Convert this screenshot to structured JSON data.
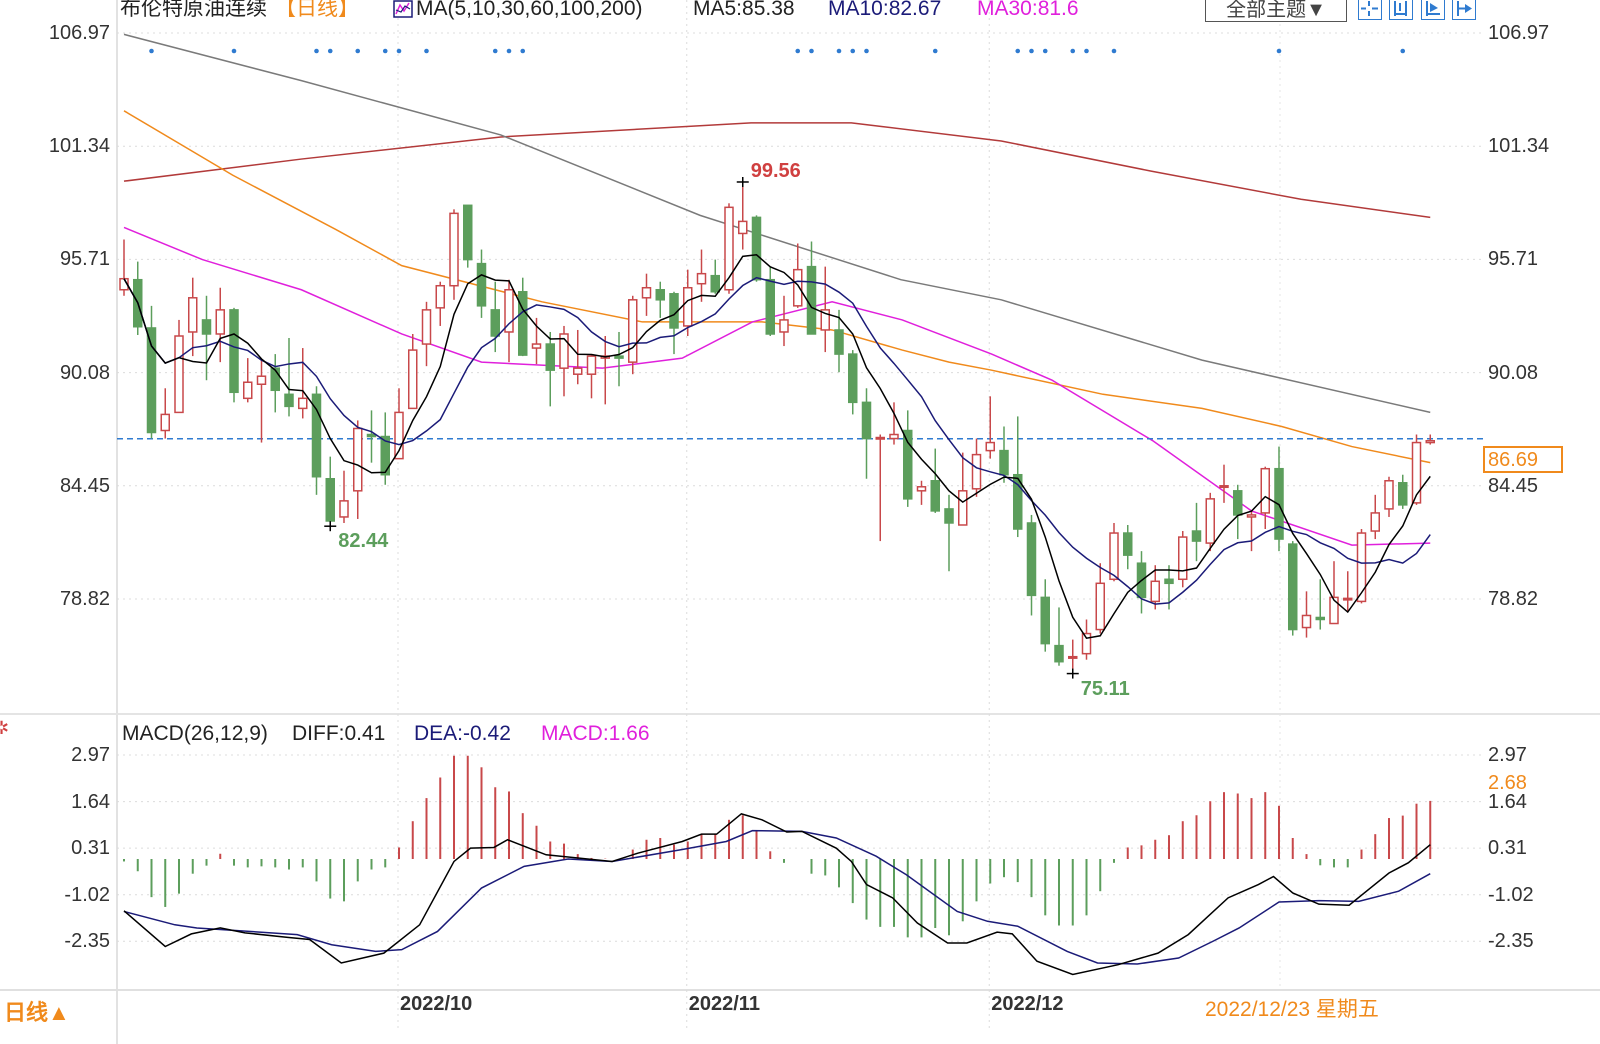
{
  "header": {
    "title": "布伦特原油连续",
    "period": "【日线】",
    "ma_params": "MA(5,10,30,60,100,200)",
    "ma5": "MA5:85.38",
    "ma10": "MA10:82.67",
    "ma30": "MA30:81.6",
    "theme_select": "全部主题▼"
  },
  "toolbar_icons": [
    "crosshair-icon",
    "zoom-range-icon",
    "play-step-icon",
    "jump-end-icon"
  ],
  "macd_header": {
    "params": "MACD(26,12,9)",
    "diff": "DIFF:0.41",
    "dea": "DEA:-0.42",
    "macd": "MACD:1.66"
  },
  "bottom": {
    "period_toggle": "日线▲",
    "cursor_date": "2022/12/23 星期五"
  },
  "colors": {
    "up": "#c8484a",
    "down": "#5c9e5c",
    "ma5": "#000000",
    "ma10": "#1b1b78",
    "ma30": "#e020dc",
    "ma60": "#f08a1c",
    "ma100": "#7a7a7a",
    "ma200": "#b23a3a",
    "current_line": "#2f7bd0",
    "accent": "#f08a1c"
  },
  "chart_data": [
    {
      "type": "candlestick",
      "title": "布伦特原油连续",
      "price_ticks": [
        "106.97",
        "101.34",
        "95.71",
        "90.08",
        "84.45",
        "78.82"
      ],
      "x_ticks": [
        {
          "label": "2022/10",
          "index": 21
        },
        {
          "label": "2022/11",
          "index": 42
        },
        {
          "label": "2022/12",
          "index": 64
        }
      ],
      "current_price": "86.69",
      "ohlc": [
        [
          94.2,
          96.7,
          93.9,
          94.75
        ],
        [
          94.7,
          95.6,
          91.95,
          92.36
        ],
        [
          92.3,
          93.4,
          86.8,
          87.1
        ],
        [
          87.2,
          89.3,
          86.8,
          88.0
        ],
        [
          88.1,
          92.7,
          88.1,
          91.9
        ],
        [
          92.1,
          94.8,
          90.9,
          93.8
        ],
        [
          92.7,
          93.9,
          89.7,
          92.0
        ],
        [
          92.0,
          94.3,
          90.6,
          93.2
        ],
        [
          93.2,
          93.3,
          88.6,
          89.1
        ],
        [
          88.8,
          90.8,
          88.6,
          89.6
        ],
        [
          89.5,
          90.7,
          86.6,
          89.9
        ],
        [
          90.3,
          91.0,
          88.1,
          89.2
        ],
        [
          89.0,
          91.8,
          87.9,
          88.4
        ],
        [
          88.3,
          91.3,
          87.8,
          88.8
        ],
        [
          89.0,
          89.4,
          84.0,
          84.9
        ],
        [
          84.8,
          85.9,
          82.44,
          82.7
        ],
        [
          82.9,
          85.2,
          82.6,
          83.7
        ],
        [
          84.2,
          87.7,
          82.8,
          87.3
        ],
        [
          87.0,
          88.2,
          85.6,
          86.9
        ],
        [
          86.9,
          88.1,
          84.5,
          85.0
        ],
        [
          85.8,
          89.3,
          85.8,
          88.1
        ],
        [
          88.3,
          92.0,
          88.3,
          91.2
        ],
        [
          91.5,
          93.6,
          90.4,
          93.2
        ],
        [
          93.3,
          94.6,
          92.4,
          94.4
        ],
        [
          94.4,
          98.2,
          93.7,
          98.0
        ],
        [
          98.4,
          98.4,
          95.3,
          95.7
        ],
        [
          95.5,
          96.2,
          92.8,
          93.4
        ],
        [
          93.2,
          94.6,
          91.1,
          91.9
        ],
        [
          92.1,
          94.7,
          90.6,
          94.2
        ],
        [
          94.1,
          94.8,
          90.9,
          90.95
        ],
        [
          91.3,
          92.8,
          90.5,
          91.5
        ],
        [
          91.5,
          92.1,
          88.4,
          90.2
        ],
        [
          90.3,
          92.4,
          88.9,
          92.0
        ],
        [
          90.0,
          92.2,
          89.5,
          90.3
        ],
        [
          90.0,
          91.0,
          88.8,
          90.9
        ],
        [
          90.8,
          91.9,
          88.5,
          90.9
        ],
        [
          90.9,
          92.1,
          89.4,
          90.8
        ],
        [
          90.6,
          93.9,
          90.0,
          93.7
        ],
        [
          93.8,
          95.0,
          92.9,
          94.3
        ],
        [
          94.2,
          94.6,
          92.8,
          93.7
        ],
        [
          94.0,
          94.1,
          91.0,
          92.3
        ],
        [
          92.4,
          95.2,
          91.9,
          94.3
        ],
        [
          94.5,
          96.2,
          93.6,
          95.0
        ],
        [
          94.9,
          95.7,
          94.0,
          94.1
        ],
        [
          94.2,
          98.5,
          94.0,
          98.3
        ],
        [
          97.0,
          99.56,
          96.2,
          97.6
        ],
        [
          97.8,
          97.9,
          94.6,
          94.7
        ],
        [
          94.7,
          95.35,
          91.9,
          92.0
        ],
        [
          92.1,
          93.9,
          91.4,
          92.7
        ],
        [
          93.4,
          96.5,
          93.3,
          95.2
        ],
        [
          95.35,
          96.6,
          92.0,
          92.0
        ],
        [
          92.2,
          95.35,
          91.1,
          93.2
        ],
        [
          92.2,
          93.2,
          90.1,
          91.0
        ],
        [
          91.0,
          91.2,
          88.0,
          88.6
        ],
        [
          88.6,
          89.3,
          84.8,
          86.8
        ],
        [
          86.8,
          87.0,
          81.7,
          86.85
        ],
        [
          86.8,
          88.6,
          86.5,
          87.0
        ],
        [
          87.2,
          88.2,
          83.4,
          83.8
        ],
        [
          84.2,
          84.7,
          83.5,
          84.4
        ],
        [
          84.7,
          86.3,
          83.1,
          83.2
        ],
        [
          83.3,
          84.0,
          80.2,
          82.6
        ],
        [
          82.5,
          86.1,
          82.5,
          84.2
        ],
        [
          84.3,
          86.8,
          83.9,
          86.0
        ],
        [
          86.2,
          88.9,
          85.8,
          86.6
        ],
        [
          86.2,
          87.4,
          84.6,
          85.0
        ],
        [
          85.0,
          87.9,
          81.9,
          82.3
        ],
        [
          82.6,
          83.0,
          78.0,
          79.0
        ],
        [
          78.9,
          79.8,
          76.2,
          76.6
        ],
        [
          76.5,
          78.4,
          75.5,
          75.7
        ],
        [
          75.9,
          76.8,
          75.11,
          75.95
        ],
        [
          76.1,
          77.8,
          75.8,
          77.1
        ],
        [
          77.3,
          80.6,
          77.1,
          79.6
        ],
        [
          79.8,
          82.6,
          79.7,
          82.1
        ],
        [
          82.1,
          82.5,
          80.3,
          81.0
        ],
        [
          80.6,
          81.2,
          78.1,
          78.9
        ],
        [
          78.7,
          80.5,
          78.3,
          79.7
        ],
        [
          79.8,
          80.5,
          78.3,
          79.6
        ],
        [
          79.8,
          82.2,
          79.4,
          81.9
        ],
        [
          82.2,
          83.6,
          80.7,
          81.7
        ],
        [
          81.6,
          84.1,
          81.2,
          83.8
        ],
        [
          84.4,
          85.5,
          83.6,
          84.45
        ],
        [
          84.2,
          84.5,
          81.8,
          83.0
        ],
        [
          82.9,
          83.2,
          81.2,
          83.0
        ],
        [
          83.1,
          85.4,
          82.3,
          85.3
        ],
        [
          85.3,
          86.4,
          81.2,
          81.8
        ],
        [
          81.55,
          81.7,
          77.0,
          77.3
        ],
        [
          77.4,
          79.2,
          76.9,
          78.0
        ],
        [
          77.9,
          79.8,
          77.3,
          77.8
        ],
        [
          77.6,
          80.7,
          77.6,
          78.9
        ],
        [
          78.8,
          80.2,
          78.2,
          78.85
        ],
        [
          78.7,
          82.3,
          78.6,
          82.1
        ],
        [
          82.2,
          84.0,
          81.8,
          83.1
        ],
        [
          83.3,
          84.9,
          82.9,
          84.7
        ],
        [
          84.6,
          85.0,
          83.3,
          83.5
        ],
        [
          83.6,
          87.0,
          83.5,
          86.6
        ],
        [
          86.6,
          87.0,
          86.5,
          86.69
        ]
      ],
      "ma_series": {
        "ma30": [
          [
            1,
            97.3
          ],
          [
            6.7,
            95.7
          ],
          [
            13.9,
            94.2
          ],
          [
            21.2,
            92.0
          ],
          [
            27,
            90.6
          ],
          [
            35.8,
            90.3
          ],
          [
            41.6,
            90.8
          ],
          [
            46.7,
            92.6
          ],
          [
            52.5,
            93.6
          ],
          [
            57.6,
            92.7
          ],
          [
            64.1,
            91.0
          ],
          [
            68.5,
            89.7
          ],
          [
            75.8,
            86.7
          ],
          [
            83,
            83.2
          ],
          [
            90.3,
            81.5
          ],
          [
            96,
            81.6
          ]
        ],
        "ma60": [
          [
            1,
            103.1
          ],
          [
            8.9,
            99.9
          ],
          [
            16.4,
            97.2
          ],
          [
            21.2,
            95.4
          ],
          [
            31.4,
            93.6
          ],
          [
            38.7,
            92.6
          ],
          [
            47.4,
            92.6
          ],
          [
            52.5,
            92.2
          ],
          [
            57.6,
            91.2
          ],
          [
            61,
            90.6
          ],
          [
            64.1,
            90.2
          ],
          [
            72.2,
            89.0
          ],
          [
            79.4,
            88.3
          ],
          [
            85.2,
            87.4
          ],
          [
            90.3,
            86.4
          ],
          [
            96,
            85.6
          ]
        ],
        "ma100": [
          [
            1,
            106.9
          ],
          [
            13.9,
            104.6
          ],
          [
            28.4,
            101.9
          ],
          [
            42.9,
            97.9
          ],
          [
            57.5,
            94.7
          ],
          [
            64.8,
            93.7
          ],
          [
            79.4,
            90.7
          ],
          [
            96,
            88.1
          ]
        ],
        "ma200": [
          [
            1,
            99.6
          ],
          [
            13.9,
            100.7
          ],
          [
            28.4,
            101.8
          ],
          [
            46.6,
            102.5
          ],
          [
            53.9,
            102.5
          ],
          [
            64.8,
            101.6
          ],
          [
            75.7,
            100.1
          ],
          [
            86.6,
            98.7
          ],
          [
            96,
            97.8
          ]
        ]
      },
      "annotations": [
        {
          "label": "99.56",
          "index": 46,
          "kind": "high",
          "color": "#d04040"
        },
        {
          "label": "82.44",
          "index": 16,
          "kind": "low",
          "color": "#5c9e5c"
        },
        {
          "label": "75.11",
          "index": 70,
          "kind": "low",
          "color": "#5c9e5c"
        }
      ],
      "signal_dots": [
        3,
        9,
        15,
        16,
        18,
        20,
        21,
        23,
        28,
        29,
        30,
        50,
        51,
        53,
        54,
        55,
        60,
        66,
        67,
        68,
        70,
        71,
        73,
        85,
        94
      ]
    },
    {
      "type": "bar",
      "title": "MACD(26,12,9)",
      "ticks": [
        "2.97",
        "1.64",
        "0.31",
        "-1.02",
        "-2.35"
      ],
      "right_marker": "2.68",
      "histogram": [
        -0.07,
        -0.35,
        -1.09,
        -1.37,
        -0.99,
        -0.42,
        -0.19,
        0.15,
        -0.19,
        -0.24,
        -0.21,
        -0.24,
        -0.3,
        -0.24,
        -0.64,
        -1.13,
        -1.21,
        -0.64,
        -0.3,
        -0.24,
        0.33,
        1.08,
        1.74,
        2.33,
        2.95,
        2.95,
        2.62,
        2.05,
        1.93,
        1.31,
        0.95,
        0.5,
        0.44,
        0.14,
        0.03,
        0.01,
        -0.01,
        0.27,
        0.55,
        0.6,
        0.41,
        0.5,
        0.71,
        0.7,
        1.12,
        1.25,
        0.79,
        0.22,
        -0.11,
        0.0,
        -0.42,
        -0.47,
        -0.81,
        -1.26,
        -1.73,
        -1.94,
        -1.94,
        -2.24,
        -2.24,
        -1.97,
        -2.18,
        -1.78,
        -1.21,
        -0.7,
        -0.52,
        -0.66,
        -1.09,
        -1.61,
        -1.9,
        -1.9,
        -1.61,
        -0.92,
        -0.11,
        0.33,
        0.39,
        0.55,
        0.68,
        1.08,
        1.25,
        1.65,
        1.91,
        1.87,
        1.74,
        1.91,
        1.52,
        0.6,
        0.14,
        -0.18,
        -0.24,
        -0.24,
        0.27,
        0.71,
        1.17,
        1.24,
        1.58,
        1.66
      ],
      "diff": [
        [
          1,
          -1.48
        ],
        [
          4,
          -2.5
        ],
        [
          5.9,
          -2.14
        ],
        [
          8,
          -1.97
        ],
        [
          9.8,
          -2.11
        ],
        [
          12.9,
          -2.24
        ],
        [
          14.5,
          -2.3
        ],
        [
          16.8,
          -2.97
        ],
        [
          19.9,
          -2.69
        ],
        [
          22.5,
          -1.88
        ],
        [
          25,
          -0.07
        ],
        [
          26.2,
          0.31
        ],
        [
          27.9,
          0.33
        ],
        [
          28.9,
          0.55
        ],
        [
          31.7,
          0.12
        ],
        [
          36.5,
          -0.07
        ],
        [
          38.4,
          0.17
        ],
        [
          41.6,
          0.5
        ],
        [
          43,
          0.71
        ],
        [
          44.1,
          0.71
        ],
        [
          45.9,
          1.29
        ],
        [
          47.4,
          1.12
        ],
        [
          49.2,
          0.77
        ],
        [
          50.3,
          0.79
        ],
        [
          52.8,
          0.31
        ],
        [
          53.9,
          -0.07
        ],
        [
          55,
          -0.73
        ],
        [
          56.9,
          -1.11
        ],
        [
          58.7,
          -1.83
        ],
        [
          60.9,
          -2.4
        ],
        [
          62.3,
          -2.4
        ],
        [
          64.5,
          -2.09
        ],
        [
          65.6,
          -2.14
        ],
        [
          67.4,
          -2.92
        ],
        [
          70,
          -3.3
        ],
        [
          73.3,
          -3.02
        ],
        [
          76.2,
          -2.69
        ],
        [
          78.4,
          -2.16
        ],
        [
          81.3,
          -1.11
        ],
        [
          83.5,
          -0.73
        ],
        [
          84.6,
          -0.5
        ],
        [
          86,
          -0.97
        ],
        [
          87.9,
          -1.29
        ],
        [
          90.1,
          -1.32
        ],
        [
          93,
          -0.4
        ],
        [
          94.4,
          -0.11
        ],
        [
          96,
          0.41
        ]
      ],
      "dea": [
        [
          1,
          -1.5
        ],
        [
          4.7,
          -1.88
        ],
        [
          6.3,
          -1.97
        ],
        [
          13.6,
          -2.16
        ],
        [
          16.1,
          -2.45
        ],
        [
          19.3,
          -2.64
        ],
        [
          21.2,
          -2.59
        ],
        [
          23.8,
          -2.07
        ],
        [
          27,
          -0.83
        ],
        [
          30.1,
          -0.21
        ],
        [
          33.3,
          0
        ],
        [
          36.5,
          -0.07
        ],
        [
          41.6,
          0.27
        ],
        [
          44.8,
          0.5
        ],
        [
          46.7,
          0.81
        ],
        [
          50.3,
          0.79
        ],
        [
          52.8,
          0.6
        ],
        [
          55.7,
          0.08
        ],
        [
          57.9,
          -0.45
        ],
        [
          61.6,
          -1.5
        ],
        [
          63.8,
          -1.78
        ],
        [
          66,
          -1.92
        ],
        [
          69.6,
          -2.64
        ],
        [
          71.8,
          -2.97
        ],
        [
          74.7,
          -3.0
        ],
        [
          77.7,
          -2.83
        ],
        [
          80.2,
          -2.35
        ],
        [
          82.1,
          -1.97
        ],
        [
          85,
          -1.23
        ],
        [
          87.9,
          -1.19
        ],
        [
          90.8,
          -1.21
        ],
        [
          93.7,
          -0.92
        ],
        [
          96,
          -0.42
        ]
      ]
    }
  ]
}
